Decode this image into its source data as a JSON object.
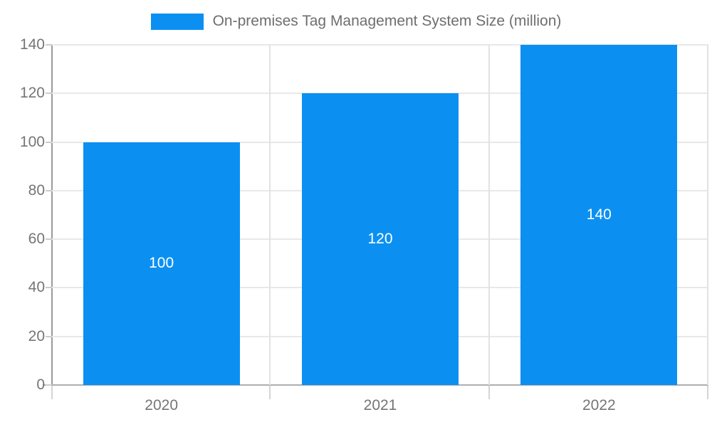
{
  "chart_data": {
    "type": "bar",
    "legend": "On-premises Tag Management System Size (million)",
    "categories": [
      "2020",
      "2021",
      "2022"
    ],
    "values": [
      100,
      120,
      140
    ],
    "data_labels": [
      "100",
      "120",
      "140"
    ],
    "ytick_labels": [
      "0",
      "20",
      "40",
      "60",
      "80",
      "100",
      "120",
      "140"
    ],
    "yticks": [
      0,
      20,
      40,
      60,
      80,
      100,
      120,
      140
    ],
    "ylim": [
      0,
      140
    ],
    "xlabel": "",
    "ylabel": "",
    "grid": "on",
    "legend_position": "top-center",
    "colors": {
      "bar": "#0b90f2",
      "data_label": "#ffffff",
      "axis_text": "#757575",
      "legend_text": "#6e6e6e",
      "gridline": "#e8e8e8",
      "axis_line": "#aeaeae"
    }
  }
}
